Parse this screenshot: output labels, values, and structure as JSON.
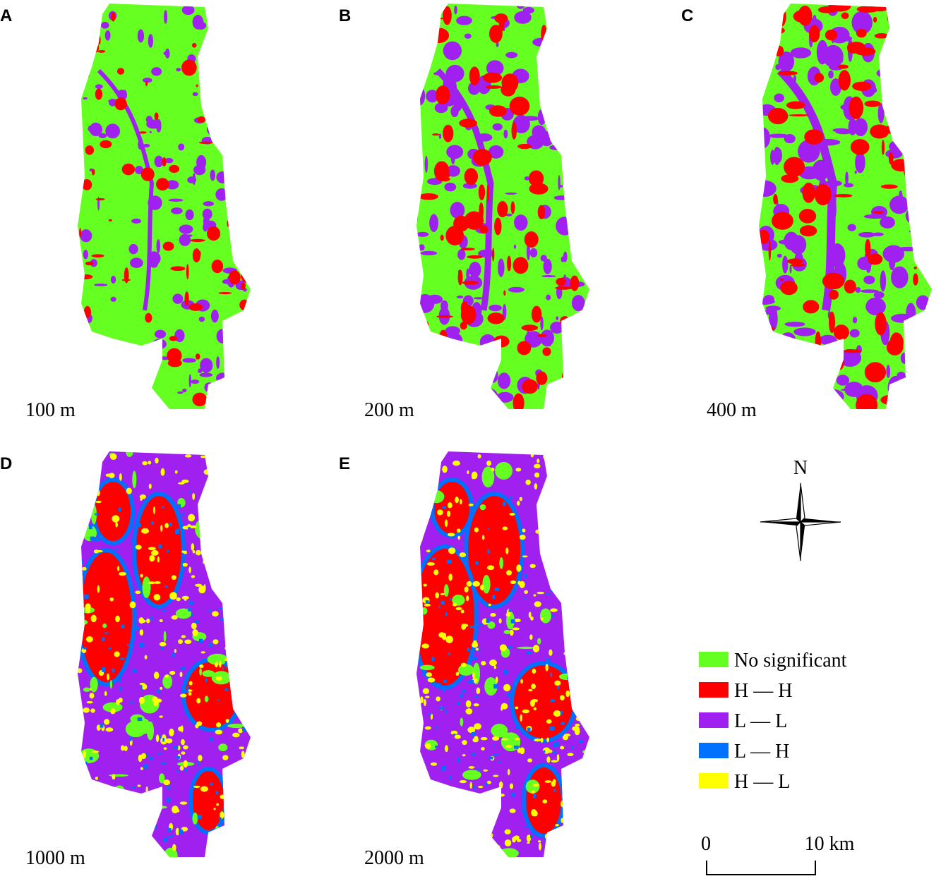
{
  "panels": [
    {
      "letter": "A",
      "scale": "100 m"
    },
    {
      "letter": "B",
      "scale": "200 m"
    },
    {
      "letter": "C",
      "scale": "400 m"
    },
    {
      "letter": "D",
      "scale": "1000 m"
    },
    {
      "letter": "E",
      "scale": "2000 m"
    }
  ],
  "north": "N",
  "legend": [
    {
      "label": "No significant",
      "color": "#66ff22"
    },
    {
      "label": "H — H",
      "color": "#ff0000"
    },
    {
      "label": "L — L",
      "color": "#a020f0"
    },
    {
      "label": "L — H",
      "color": "#0070ff"
    },
    {
      "label": "H — L",
      "color": "#ffff00"
    }
  ],
  "scale_bar": {
    "start": "0",
    "end": "10 km"
  }
}
